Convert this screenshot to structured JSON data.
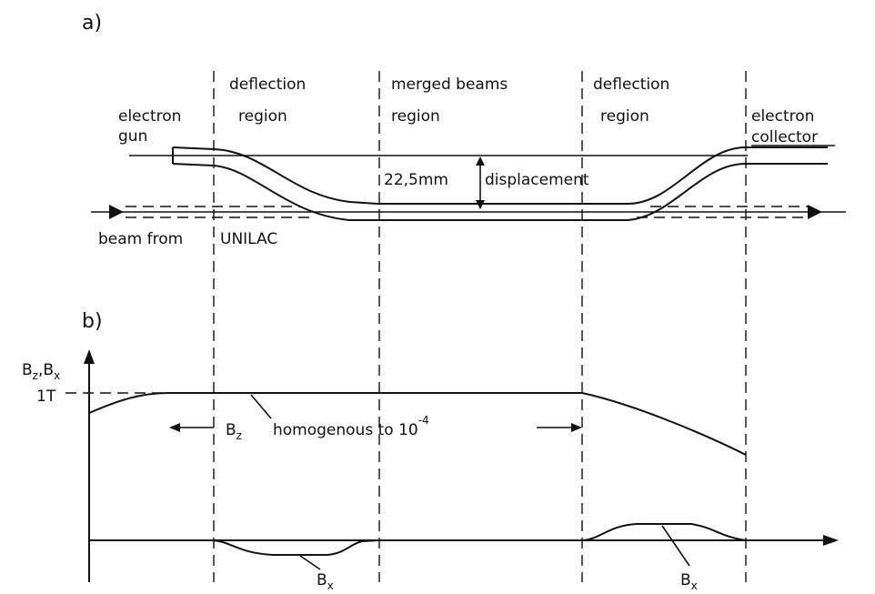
{
  "panel_a": {
    "label": "a)",
    "regions": {
      "deflection_left": [
        "deflection",
        "region"
      ],
      "merged": [
        "merged beams",
        "region"
      ],
      "deflection_right": [
        "deflection",
        "region"
      ]
    },
    "electron_gun": [
      "electron",
      "gun"
    ],
    "electron_collector": [
      "electron",
      "collector"
    ],
    "beam_from": "beam from",
    "unilac": "UNILAC",
    "gap_value": "22,5mm",
    "displacement": "displacement"
  },
  "panel_b": {
    "label": "b)",
    "y_axis_label_main": "B",
    "y_axis_sub1": "z",
    "y_axis_mid": ",B",
    "y_axis_sub2": "x",
    "tick_1T": "1T",
    "bz_main": "B",
    "bz_sub": "z",
    "homogenous": "homogenous to 10",
    "exponent": "-4",
    "bx_main": "B",
    "bx_sub": "x"
  }
}
